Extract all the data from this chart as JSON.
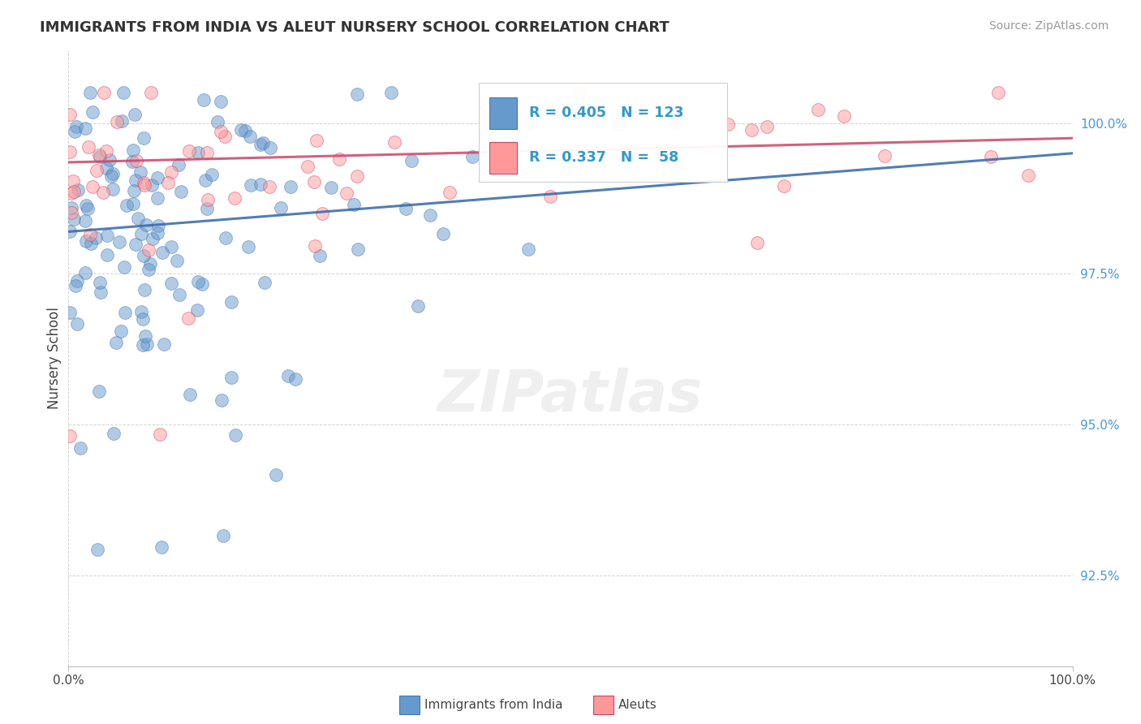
{
  "title": "IMMIGRANTS FROM INDIA VS ALEUT NURSERY SCHOOL CORRELATION CHART",
  "source_text": "Source: ZipAtlas.com",
  "ylabel": "Nursery School",
  "xmin": 0.0,
  "xmax": 100.0,
  "ymin": 91.0,
  "ymax": 101.2,
  "yticks": [
    92.5,
    95.0,
    97.5,
    100.0
  ],
  "blue_color": "#6699CC",
  "pink_color": "#FF9999",
  "blue_edge_color": "#4477BB",
  "pink_edge_color": "#CC4466",
  "blue_line_color": "#3366AA",
  "pink_line_color": "#CC4466",
  "legend_label_blue": "Immigrants from India",
  "legend_label_pink": "Aleuts",
  "blue_R": 0.405,
  "blue_N": 123,
  "pink_R": 0.337,
  "pink_N": 58,
  "watermark": "ZIPatlas",
  "ytick_color": "#4499DD",
  "title_color": "#333333",
  "source_color": "#999999"
}
